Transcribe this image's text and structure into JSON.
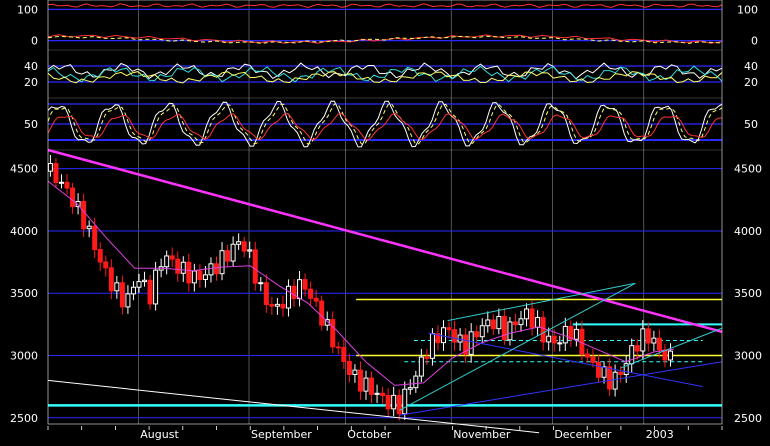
{
  "chart_data": {
    "type": "candlestick",
    "colors": {
      "background": "#000000",
      "grid": "#ffffff",
      "panel_line": "#2a2aff",
      "up_candle": "#ffffff",
      "down_candle": "#ff1a1a",
      "moving_average": "#e040e0",
      "trend_magenta": "#ff33ff",
      "level_yellow": "#ffff33",
      "level_cyan": "#33ffff",
      "channel_blue": "#3333ff",
      "channel_cyan": "#33cccc",
      "white_line": "#ffffff",
      "osc_red": "#ff3333",
      "osc_yellow": "#ffff66",
      "osc_white": "#ffffff",
      "osc_cyan": "#33dddd"
    },
    "x_axis": {
      "labels": [
        "August",
        "September",
        "October",
        "November",
        "December",
        "2003"
      ],
      "label_positions": [
        20,
        43,
        63,
        85,
        106,
        125
      ],
      "range": [
        0,
        140
      ]
    },
    "indicator_panels": [
      {
        "name": "panel-1",
        "ticks": [
          {
            "value": 100,
            "label": "100"
          },
          {
            "value": 0,
            "label": "0"
          }
        ],
        "range": [
          -30,
          130
        ]
      },
      {
        "name": "panel-2",
        "ticks": [
          {
            "value": 40,
            "label": "40"
          },
          {
            "value": 20,
            "label": "20"
          }
        ],
        "range": [
          0,
          60
        ]
      },
      {
        "name": "panel-3",
        "ticks": [
          {
            "value": 50,
            "label": "50"
          }
        ],
        "range": [
          0,
          100
        ]
      }
    ],
    "price_panel": {
      "ylim": [
        2450,
        4650
      ],
      "y_ticks": [
        {
          "value": 4500,
          "label": "4500"
        },
        {
          "value": 4000,
          "label": "4000"
        },
        {
          "value": 3500,
          "label": "3500"
        },
        {
          "value": 3000,
          "label": "3000"
        },
        {
          "value": 2500,
          "label": "2500"
        }
      ],
      "close_path": [
        [
          0,
          4480
        ],
        [
          4,
          4280
        ],
        [
          8,
          4050
        ],
        [
          12,
          3700
        ],
        [
          16,
          3420
        ],
        [
          19,
          3600
        ],
        [
          21,
          3420
        ],
        [
          24,
          3800
        ],
        [
          28,
          3720
        ],
        [
          31,
          3650
        ],
        [
          35,
          3700
        ],
        [
          38,
          3800
        ],
        [
          40,
          3900
        ],
        [
          42,
          3780
        ],
        [
          44,
          3560
        ],
        [
          47,
          3400
        ],
        [
          50,
          3500
        ],
        [
          53,
          3550
        ],
        [
          55,
          3400
        ],
        [
          58,
          3200
        ],
        [
          61,
          3000
        ],
        [
          64,
          2850
        ],
        [
          67,
          2750
        ],
        [
          69,
          2650
        ],
        [
          71,
          2580
        ],
        [
          73,
          2560
        ],
        [
          75,
          2720
        ],
        [
          77,
          2900
        ],
        [
          79,
          3100
        ],
        [
          81,
          3200
        ],
        [
          83,
          3250
        ],
        [
          85,
          3120
        ],
        [
          87,
          3050
        ],
        [
          89,
          3150
        ],
        [
          91,
          3220
        ],
        [
          93,
          3260
        ],
        [
          95,
          3200
        ],
        [
          97,
          3300
        ],
        [
          99,
          3380
        ],
        [
          101,
          3300
        ],
        [
          103,
          3150
        ],
        [
          105,
          3060
        ],
        [
          107,
          3120
        ],
        [
          109,
          3180
        ],
        [
          111,
          3040
        ],
        [
          113,
          2950
        ],
        [
          115,
          2900
        ],
        [
          117,
          2820
        ],
        [
          119,
          2880
        ],
        [
          121,
          3000
        ],
        [
          123,
          3100
        ],
        [
          125,
          3120
        ],
        [
          127,
          3020
        ],
        [
          129,
          2980
        ],
        [
          130,
          3000
        ]
      ],
      "moving_average_path": [
        [
          0,
          4400
        ],
        [
          6,
          4220
        ],
        [
          12,
          3950
        ],
        [
          18,
          3700
        ],
        [
          24,
          3700
        ],
        [
          30,
          3680
        ],
        [
          36,
          3710
        ],
        [
          42,
          3720
        ],
        [
          48,
          3560
        ],
        [
          54,
          3420
        ],
        [
          60,
          3200
        ],
        [
          66,
          2950
        ],
        [
          72,
          2760
        ],
        [
          78,
          2780
        ],
        [
          84,
          2980
        ],
        [
          90,
          3100
        ],
        [
          96,
          3180
        ],
        [
          102,
          3230
        ],
        [
          108,
          3150
        ],
        [
          114,
          3050
        ],
        [
          120,
          2950
        ],
        [
          126,
          3030
        ],
        [
          130,
          3050
        ]
      ],
      "trend_lines": [
        {
          "color": "trend_magenta",
          "points": [
            [
              0,
              4650
            ],
            [
              140,
              3190
            ]
          ],
          "width": 2.5
        },
        {
          "color": "white_line",
          "points": [
            [
              0,
              2800
            ],
            [
              102,
              2380
            ]
          ],
          "width": 1
        },
        {
          "color": "channel_blue",
          "points": [
            [
              73,
              2520
            ],
            [
              140,
              2950
            ]
          ],
          "width": 1
        },
        {
          "color": "channel_blue",
          "points": [
            [
              79,
              3180
            ],
            [
              136,
              2750
            ]
          ],
          "width": 1
        },
        {
          "color": "channel_cyan",
          "points": [
            [
              73,
              2560
            ],
            [
              122,
              3580
            ]
          ],
          "width": 1
        },
        {
          "color": "channel_cyan",
          "points": [
            [
              83,
              3280
            ],
            [
              122,
              3580
            ]
          ],
          "width": 1
        },
        {
          "color": "channel_cyan",
          "points": [
            [
              119,
              2900
            ],
            [
              140,
              3220
            ]
          ],
          "width": 1
        }
      ],
      "horizontal_levels": [
        {
          "value": 3450,
          "from": 64,
          "to": 140,
          "color": "level_yellow",
          "width": 1.5,
          "dash": false
        },
        {
          "value": 3000,
          "from": 64,
          "to": 140,
          "color": "level_yellow",
          "width": 1.5,
          "dash": false
        },
        {
          "value": 3250,
          "from": 109,
          "to": 140,
          "color": "level_cyan",
          "width": 2,
          "dash": false
        },
        {
          "value": 3120,
          "from": 76,
          "to": 136,
          "color": "level_cyan",
          "width": 1,
          "dash": true
        },
        {
          "value": 2950,
          "from": 74,
          "to": 136,
          "color": "level_cyan",
          "width": 1,
          "dash": true
        },
        {
          "value": 2600,
          "from": 0,
          "to": 140,
          "color": "level_cyan",
          "width": 2.5,
          "dash": false
        }
      ]
    }
  }
}
